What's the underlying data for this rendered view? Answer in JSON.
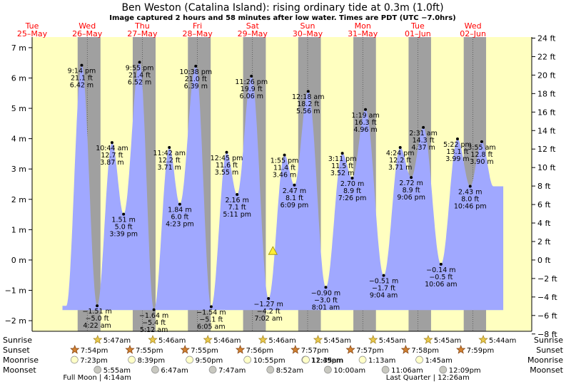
{
  "header": {
    "title": "Ben Weston (Catalina Island): rising  ordinary tide at 0.3m (1.0ft)",
    "subtitle": "Image captured 2 hours and 58 minutes after low water. Times are PDT (UTC −7.0hrs)"
  },
  "colors": {
    "day": "#ffffc0",
    "night": "#a0a0a0",
    "tide": "#a0a8ff",
    "dayLabel": "#ff0000",
    "now": "#ffee33"
  },
  "chart_data": {
    "type": "area",
    "title": "Ben Weston (Catalina Island): rising  ordinary tide at 0.3m (1.0ft)",
    "x_unit": "days from 25-May 00:00 PDT",
    "ylim": [
      -2.35,
      7.35
    ],
    "y_ticks_m": [
      "7 m",
      "6 m",
      "5 m",
      "4 m",
      "3 m",
      "2 m",
      "1 m",
      "0 m",
      "−1 m",
      "−2 m"
    ],
    "y_ticks_ft": [
      "24 ft",
      "22 ft",
      "20 ft",
      "18 ft",
      "16 ft",
      "14 ft",
      "12 ft",
      "10 ft",
      "8 ft",
      "6 ft",
      "4 ft",
      "2 ft",
      "0 ft",
      "−2 ft",
      "−4 ft",
      "−6 ft",
      "−8 ft"
    ],
    "days": [
      {
        "dow": "Tue",
        "date": "25–May"
      },
      {
        "dow": "Wed",
        "date": "26–May"
      },
      {
        "dow": "Thu",
        "date": "27–May"
      },
      {
        "dow": "Fri",
        "date": "28–May"
      },
      {
        "dow": "Sat",
        "date": "29–May"
      },
      {
        "dow": "Sun",
        "date": "30–May"
      },
      {
        "dow": "Mon",
        "date": "31–May"
      },
      {
        "dow": "Tue",
        "date": "01–Jun"
      },
      {
        "dow": "Wed",
        "date": "02–Jun"
      }
    ],
    "tides": [
      {
        "x": 0.9,
        "h": 6.42,
        "lines": [
          "9:14 pm",
          "21.1 ft",
          "6.42 m"
        ]
      },
      {
        "x": 1.18,
        "h": -1.51,
        "lines": [
          "−1.51 m",
          "−5.0 ft",
          "4:22 am"
        ]
      },
      {
        "x": 1.45,
        "h": 3.87,
        "lines": [
          "10:44 am",
          "12.7 ft",
          "3.87 m"
        ]
      },
      {
        "x": 1.66,
        "h": 1.51,
        "lines": [
          "1.51 m",
          "5.0 ft",
          "3:39 pm"
        ]
      },
      {
        "x": 1.95,
        "h": 6.52,
        "lines": [
          "9:55 pm",
          "21.4 ft",
          "6.52 m"
        ]
      },
      {
        "x": 2.21,
        "h": -1.64,
        "lines": [
          "−1.64 m",
          "−5.4 ft",
          "5:12 am"
        ]
      },
      {
        "x": 2.49,
        "h": 3.71,
        "lines": [
          "11:42 am",
          "12.2 ft",
          "3.71 m"
        ]
      },
      {
        "x": 2.68,
        "h": 1.84,
        "lines": [
          "1.84 m",
          "6.0 ft",
          "4:23 pm"
        ]
      },
      {
        "x": 2.97,
        "h": 6.39,
        "lines": [
          "10:38 pm",
          "21.0 ft",
          "6.39 m"
        ]
      },
      {
        "x": 3.25,
        "h": -1.54,
        "lines": [
          "−1.54 m",
          "−5.1 ft",
          "6:05 am"
        ]
      },
      {
        "x": 3.53,
        "h": 3.55,
        "lines": [
          "12:45 pm",
          "11.6 ft",
          "3.55 m"
        ]
      },
      {
        "x": 3.72,
        "h": 2.16,
        "lines": [
          "2.16 m",
          "7.1 ft",
          "5:11 pm"
        ]
      },
      {
        "x": 3.98,
        "h": 6.06,
        "lines": [
          "11:26 pm",
          "19.9 ft",
          "6.06 m"
        ]
      },
      {
        "x": 4.29,
        "h": -1.27,
        "lines": [
          "−1.27 m",
          "−4.2 ft",
          "7:02 am"
        ]
      },
      {
        "x": 4.58,
        "h": 3.46,
        "lines": [
          "1:55 pm",
          "11.4 ft",
          "3.46 m"
        ]
      },
      {
        "x": 4.76,
        "h": 2.47,
        "lines": [
          "2.47 m",
          "8.1 ft",
          "6:09 pm"
        ]
      },
      {
        "x": 5.01,
        "h": 5.56,
        "lines": [
          "12:18 am",
          "18.2 ft",
          "5.56 m"
        ]
      },
      {
        "x": 5.33,
        "h": -0.9,
        "lines": [
          "−0.90 m",
          "−3.0 ft",
          "8:01 am"
        ]
      },
      {
        "x": 5.63,
        "h": 3.52,
        "lines": [
          "3:11 pm",
          "11.5 ft",
          "3.52 m"
        ]
      },
      {
        "x": 5.81,
        "h": 2.7,
        "lines": [
          "2.70 m",
          "8.9 ft",
          "7:26 pm"
        ]
      },
      {
        "x": 6.05,
        "h": 4.96,
        "lines": [
          "1:19 am",
          "16.3 ft",
          "4.96 m"
        ]
      },
      {
        "x": 6.38,
        "h": -0.51,
        "lines": [
          "−0.51 m",
          "−1.7 ft",
          "9:04 am"
        ]
      },
      {
        "x": 6.68,
        "h": 3.71,
        "lines": [
          "4:24 pm",
          "12.2 ft",
          "3.71 m"
        ]
      },
      {
        "x": 6.88,
        "h": 2.72,
        "lines": [
          "2.72 m",
          "8.9 ft",
          "9:06 pm"
        ]
      },
      {
        "x": 7.1,
        "h": 4.37,
        "lines": [
          "2:31 am",
          "14.3 ft",
          "4.37 m"
        ]
      },
      {
        "x": 7.42,
        "h": -0.14,
        "lines": [
          "−0.14 m",
          "−0.5 ft",
          "10:06 am"
        ]
      },
      {
        "x": 7.72,
        "h": 3.99,
        "lines": [
          "5:22 pm",
          "13.1 ft",
          "3.99 m"
        ]
      },
      {
        "x": 7.95,
        "h": 2.43,
        "lines": [
          "2.43 m",
          "8.0 ft",
          "10:46 pm"
        ]
      },
      {
        "x": 8.16,
        "h": 3.9,
        "lines": [
          "3:55 am",
          "12.8 ft",
          "3.90 m"
        ]
      }
    ],
    "now": {
      "x": 4.37,
      "h": 0.3
    },
    "sun": [
      {
        "sunrise": "",
        "sunset": "7:54pm",
        "moonrise": "7:23pm",
        "moonset": ""
      },
      {
        "sunrise": "5:47am",
        "sunset": "7:55pm",
        "moonrise": "8:39pm",
        "moonset": "5:55am"
      },
      {
        "sunrise": "5:46am",
        "sunset": "7:55pm",
        "moonrise": "9:50pm",
        "moonset": "6:47am"
      },
      {
        "sunrise": "5:46am",
        "sunset": "7:56pm",
        "moonrise": "10:55pm",
        "moonset": "7:47am"
      },
      {
        "sunrise": "5:46am",
        "sunset": "7:57pm",
        "moonrise": "11:49pm",
        "moonset": "8:52am"
      },
      {
        "sunrise": "5:45am",
        "sunset": "7:57pm",
        "moonrise": "12:35am",
        "moonset": "10:00am"
      },
      {
        "sunrise": "5:45am",
        "sunset": "7:58pm",
        "moonrise": "1:13am",
        "moonset": "11:06am"
      },
      {
        "sunrise": "5:45am",
        "sunset": "7:59pm",
        "moonrise": "1:45am",
        "moonset": "12:09pm"
      },
      {
        "sunrise": "5:44am",
        "sunset": "",
        "moonrise": "",
        "moonset": ""
      }
    ],
    "sun_times_frac": [
      {
        "rise": null,
        "set": 0.826
      },
      {
        "rise": 0.241,
        "set": 0.826
      },
      {
        "rise": 0.241,
        "set": 0.827
      },
      {
        "rise": 0.241,
        "set": 0.829
      },
      {
        "rise": 0.241,
        "set": 0.829
      },
      {
        "rise": 0.24,
        "set": 0.83
      },
      {
        "rise": 0.24,
        "set": 0.832
      },
      {
        "rise": 0.24,
        "set": 0.833
      },
      {
        "rise": 0.239,
        "set": null
      }
    ],
    "row_labels": [
      "Sunrise",
      "Sunset",
      "Moonrise",
      "Moonset"
    ],
    "moon_phases": [
      {
        "label": "Full Moon | 4:14am",
        "day": 1
      },
      {
        "label": "Last Quarter | 12:26am",
        "day": 7
      }
    ]
  }
}
